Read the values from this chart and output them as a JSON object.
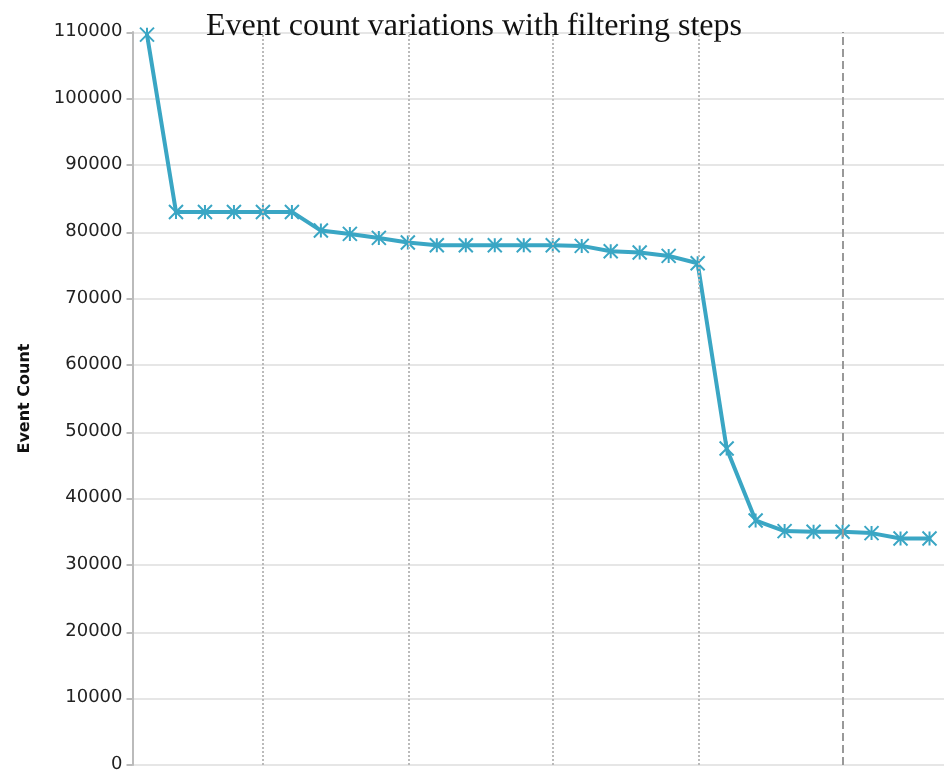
{
  "chart_data": {
    "type": "line",
    "title": "Event count variations with filtering steps",
    "ylabel": "Event Count",
    "categories": [
      null,
      null,
      null,
      null,
      null,
      null,
      null,
      null,
      null,
      null,
      null,
      null,
      null,
      null,
      null,
      null,
      null,
      null,
      null,
      null,
      null,
      null,
      null,
      null,
      null,
      null,
      null,
      null
    ],
    "series": [
      {
        "color": "#3aa6c4",
        "values": [
          109600,
          83000,
          83000,
          83000,
          83000,
          83000,
          80200,
          79700,
          79100,
          78400,
          78000,
          78000,
          78000,
          78000,
          78000,
          77900,
          77100,
          76900,
          76400,
          75300,
          47500,
          36700,
          35100,
          35000,
          35000,
          34800,
          34000,
          34000
        ]
      }
    ],
    "ylim": [
      0,
      110000
    ],
    "yticks": [
      0,
      10000,
      20000,
      30000,
      40000,
      50000,
      60000,
      70000,
      80000,
      90000,
      100000,
      110000
    ],
    "tick_labels": "y",
    "grid": true,
    "marker": "cross",
    "line_style": "solid"
  }
}
